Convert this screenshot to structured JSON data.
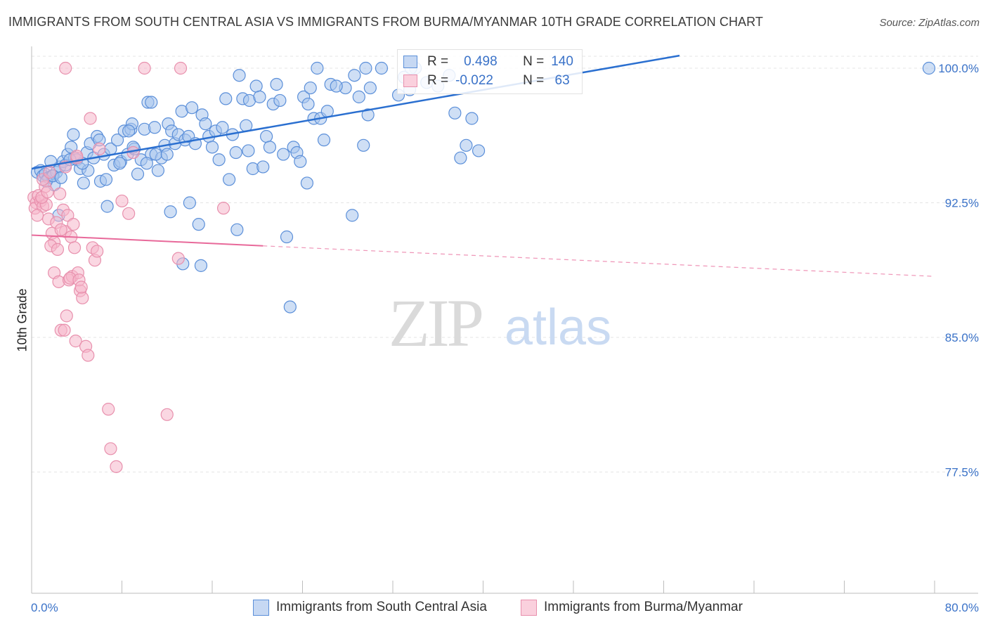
{
  "header": {
    "title": "IMMIGRANTS FROM SOUTH CENTRAL ASIA VS IMMIGRANTS FROM BURMA/MYANMAR 10TH GRADE CORRELATION CHART",
    "source": "Source: ZipAtlas.com"
  },
  "watermark": {
    "zip": "ZIP",
    "atlas": "atlas"
  },
  "stats": {
    "rows": [
      {
        "r_label": "R =",
        "r_value": "0.498",
        "n_label": "N =",
        "n_value": "140"
      },
      {
        "r_label": "R =",
        "r_value": "-0.022",
        "n_label": "N =",
        "n_value": " 63"
      }
    ]
  },
  "legend": {
    "items": [
      {
        "label": "Immigrants from South Central Asia"
      },
      {
        "label": "Immigrants from Burma/Myanmar"
      }
    ]
  },
  "colors": {
    "blue_fill": "#a8c4ec",
    "blue_stroke": "#5b8fd9",
    "blue_line": "#2a6fd0",
    "pink_fill": "#f5b7cb",
    "pink_stroke": "#e890ad",
    "pink_line": "#e8699a",
    "grid": "#e4e4e4",
    "tick_label": "#3a72c8"
  },
  "chart_data": {
    "type": "scatter",
    "title": "IMMIGRANTS FROM SOUTH CENTRAL ASIA VS IMMIGRANTS FROM BURMA/MYANMAR 10TH GRADE CORRELATION CHART",
    "xlabel": "",
    "ylabel": "10th Grade",
    "xlim": [
      0,
      80
    ],
    "ylim": [
      70.0,
      101.0
    ],
    "x_tick_labels": [
      "0.0%",
      "80.0%"
    ],
    "y_ticks": [
      77.5,
      85.0,
      92.5,
      100.0
    ],
    "y_tick_labels": [
      "77.5%",
      "85.0%",
      "92.5%",
      "100.0%"
    ],
    "grid": true,
    "legend_position": "bottom",
    "series": [
      {
        "name": "Immigrants from South Central Asia",
        "color": "#5b8fd9",
        "trend": {
          "x": [
            0,
            57.4
          ],
          "y": [
            94.4,
            100.7
          ]
        },
        "points": [
          [
            0.5,
            94.2
          ],
          [
            0.8,
            94.3
          ],
          [
            1.0,
            94.0
          ],
          [
            1.2,
            94.1
          ],
          [
            1.5,
            93.9
          ],
          [
            1.8,
            94.0
          ],
          [
            2.0,
            93.5
          ],
          [
            2.2,
            94.2
          ],
          [
            2.5,
            94.5
          ],
          [
            1.7,
            94.8
          ],
          [
            2.8,
            94.8
          ],
          [
            3.0,
            94.6
          ],
          [
            3.2,
            95.2
          ],
          [
            3.5,
            95.6
          ],
          [
            3.8,
            95.0
          ],
          [
            4.0,
            94.9
          ],
          [
            4.3,
            94.4
          ],
          [
            3.7,
            96.3
          ],
          [
            4.6,
            93.6
          ],
          [
            4.9,
            95.3
          ],
          [
            5.2,
            95.8
          ],
          [
            5.5,
            95.0
          ],
          [
            5.8,
            96.2
          ],
          [
            6.1,
            93.7
          ],
          [
            6.4,
            95.2
          ],
          [
            6.7,
            92.3
          ],
          [
            7.0,
            95.5
          ],
          [
            7.3,
            94.6
          ],
          [
            7.6,
            96.0
          ],
          [
            7.9,
            94.8
          ],
          [
            8.2,
            96.5
          ],
          [
            8.5,
            95.2
          ],
          [
            8.8,
            96.6
          ],
          [
            9.1,
            95.5
          ],
          [
            9.4,
            94.1
          ],
          [
            9.7,
            94.9
          ],
          [
            10.0,
            96.6
          ],
          [
            10.3,
            98.1
          ],
          [
            10.6,
            95.2
          ],
          [
            10.9,
            96.7
          ],
          [
            11.2,
            94.3
          ],
          [
            11.5,
            95.0
          ],
          [
            11.8,
            95.7
          ],
          [
            12.1,
            96.9
          ],
          [
            12.4,
            96.5
          ],
          [
            12.7,
            95.8
          ],
          [
            13.0,
            96.3
          ],
          [
            13.3,
            97.6
          ],
          [
            13.6,
            96.0
          ],
          [
            13.9,
            96.2
          ],
          [
            14.2,
            97.8
          ],
          [
            14.5,
            95.8
          ],
          [
            14.8,
            91.3
          ],
          [
            15.1,
            97.4
          ],
          [
            15.4,
            96.9
          ],
          [
            15.7,
            96.2
          ],
          [
            16.0,
            95.6
          ],
          [
            16.3,
            96.5
          ],
          [
            16.6,
            94.9
          ],
          [
            16.9,
            96.7
          ],
          [
            17.2,
            98.3
          ],
          [
            17.5,
            93.8
          ],
          [
            17.8,
            96.3
          ],
          [
            18.1,
            95.3
          ],
          [
            18.4,
            99.6
          ],
          [
            18.7,
            98.3
          ],
          [
            19.0,
            96.8
          ],
          [
            19.3,
            98.2
          ],
          [
            19.6,
            94.4
          ],
          [
            19.9,
            99.0
          ],
          [
            20.2,
            98.4
          ],
          [
            20.5,
            94.5
          ],
          [
            20.8,
            96.2
          ],
          [
            21.1,
            95.6
          ],
          [
            21.4,
            98.0
          ],
          [
            21.7,
            99.1
          ],
          [
            22.0,
            98.2
          ],
          [
            22.3,
            95.2
          ],
          [
            22.6,
            90.6
          ],
          [
            22.9,
            86.7
          ],
          [
            23.2,
            95.6
          ],
          [
            23.5,
            95.3
          ],
          [
            23.8,
            94.8
          ],
          [
            24.1,
            98.4
          ],
          [
            24.4,
            93.6
          ],
          [
            24.7,
            98.9
          ],
          [
            25.0,
            97.2
          ],
          [
            25.3,
            100.0
          ],
          [
            25.6,
            97.2
          ],
          [
            25.9,
            96.0
          ],
          [
            26.2,
            97.6
          ],
          [
            26.5,
            99.1
          ],
          [
            27.8,
            98.9
          ],
          [
            28.4,
            91.8
          ],
          [
            28.6,
            99.6
          ],
          [
            29.0,
            98.4
          ],
          [
            29.4,
            95.7
          ],
          [
            29.6,
            100.0
          ],
          [
            29.8,
            97.4
          ],
          [
            31.0,
            100.0
          ],
          [
            32.5,
            98.5
          ],
          [
            33.0,
            99.5
          ],
          [
            33.5,
            98.8
          ],
          [
            34.0,
            100.0
          ],
          [
            35.0,
            99.2
          ],
          [
            36.0,
            99.0
          ],
          [
            37.0,
            99.6
          ],
          [
            37.5,
            97.5
          ],
          [
            38.0,
            95.0
          ],
          [
            38.5,
            95.7
          ],
          [
            39.0,
            97.2
          ],
          [
            39.6,
            95.4
          ],
          [
            2.4,
            91.8
          ],
          [
            3.4,
            94.9
          ],
          [
            5.0,
            94.3
          ],
          [
            6.0,
            96.0
          ],
          [
            7.8,
            94.7
          ],
          [
            8.9,
            96.9
          ],
          [
            10.2,
            94.7
          ],
          [
            11.0,
            95.2
          ],
          [
            12.3,
            92.0
          ],
          [
            13.4,
            89.1
          ],
          [
            14.0,
            92.5
          ],
          [
            15.0,
            89.0
          ],
          [
            18.2,
            91.0
          ],
          [
            1.3,
            93.7
          ],
          [
            1.9,
            94.0
          ],
          [
            2.6,
            93.9
          ],
          [
            4.5,
            94.7
          ],
          [
            6.6,
            93.8
          ],
          [
            9.0,
            95.6
          ],
          [
            12.0,
            95.2
          ],
          [
            79.5,
            100.0
          ],
          [
            8.6,
            96.5
          ],
          [
            10.6,
            98.1
          ],
          [
            19.2,
            95.4
          ],
          [
            24.5,
            98.0
          ],
          [
            27.0,
            99.0
          ],
          [
            30.0,
            98.9
          ],
          [
            33.6,
            100.0
          ]
        ]
      },
      {
        "name": "Immigrants from Burma/Myanmar",
        "color": "#e890ad",
        "trend": {
          "x": [
            0,
            20.5
          ],
          "y": [
            90.7,
            90.1
          ]
        },
        "trend_dashed": {
          "x": [
            20.5,
            80
          ],
          "y": [
            90.1,
            88.4
          ]
        },
        "points": [
          [
            0.2,
            92.8
          ],
          [
            0.4,
            92.5
          ],
          [
            0.6,
            92.9
          ],
          [
            0.3,
            92.2
          ],
          [
            0.8,
            92.6
          ],
          [
            1.0,
            92.3
          ],
          [
            1.2,
            93.4
          ],
          [
            1.5,
            91.6
          ],
          [
            1.8,
            90.8
          ],
          [
            2.0,
            90.3
          ],
          [
            2.2,
            91.4
          ],
          [
            2.5,
            93.0
          ],
          [
            2.8,
            92.1
          ],
          [
            3.0,
            90.9
          ],
          [
            3.2,
            91.8
          ],
          [
            3.5,
            90.6
          ],
          [
            3.8,
            90.0
          ],
          [
            2.0,
            88.6
          ],
          [
            2.4,
            88.1
          ],
          [
            2.6,
            85.4
          ],
          [
            2.9,
            85.4
          ],
          [
            3.1,
            86.2
          ],
          [
            3.3,
            88.2
          ],
          [
            3.6,
            88.4
          ],
          [
            3.9,
            84.8
          ],
          [
            4.1,
            88.6
          ],
          [
            4.3,
            87.6
          ],
          [
            4.5,
            87.2
          ],
          [
            4.8,
            84.5
          ],
          [
            5.0,
            84.0
          ],
          [
            5.2,
            97.2
          ],
          [
            5.4,
            90.0
          ],
          [
            5.6,
            89.3
          ],
          [
            5.8,
            89.8
          ],
          [
            6.0,
            95.5
          ],
          [
            6.8,
            81.0
          ],
          [
            7.0,
            78.8
          ],
          [
            7.5,
            77.8
          ],
          [
            8.0,
            92.6
          ],
          [
            8.6,
            91.9
          ],
          [
            9.0,
            95.3
          ],
          [
            10.0,
            100.0
          ],
          [
            12.0,
            80.7
          ],
          [
            13.0,
            89.4
          ],
          [
            13.2,
            100.0
          ],
          [
            17.0,
            92.2
          ],
          [
            4.0,
            95.0
          ],
          [
            3.0,
            94.5
          ],
          [
            1.0,
            93.8
          ],
          [
            1.6,
            94.2
          ],
          [
            2.6,
            91.0
          ],
          [
            3.4,
            88.3
          ],
          [
            4.2,
            88.2
          ],
          [
            4.0,
            95.1
          ],
          [
            1.3,
            92.4
          ],
          [
            0.9,
            92.8
          ],
          [
            1.4,
            93.1
          ],
          [
            0.5,
            91.8
          ],
          [
            3.0,
            100.0
          ],
          [
            3.7,
            91.3
          ],
          [
            4.4,
            87.8
          ],
          [
            1.7,
            90.1
          ],
          [
            2.3,
            89.9
          ]
        ]
      }
    ]
  }
}
